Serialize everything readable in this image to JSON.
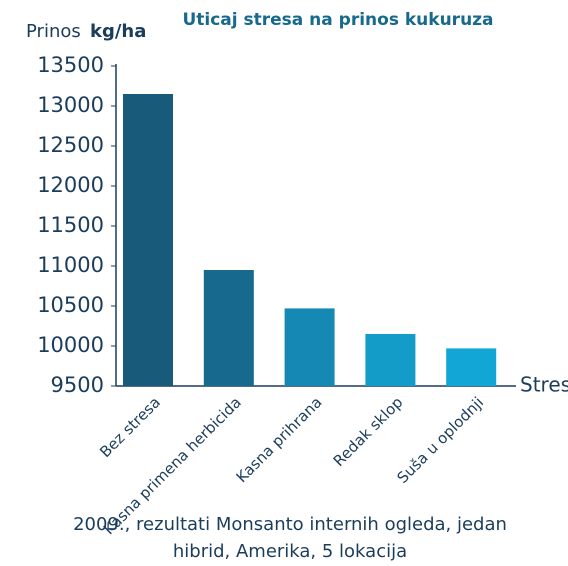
{
  "chart_data": {
    "type": "bar",
    "title": "Uticaj stresa na prinos kukuruza",
    "ylabel": "Prinos",
    "ylabel_unit": "kg/ha",
    "xlabel": "Stres",
    "categories": [
      "Bez stresa",
      "Kasna primena herbicida",
      "Kasna prihrana",
      "Redak sklop",
      "Suša u oplodnji"
    ],
    "values": [
      13150,
      10950,
      10470,
      10150,
      9970
    ],
    "colors": [
      "#175a7a",
      "#17698e",
      "#1588b3",
      "#139cc8",
      "#12a6d6"
    ],
    "ylim": [
      9500,
      13500
    ],
    "yticks": [
      9500,
      10000,
      10500,
      11000,
      11500,
      12000,
      12500,
      13000,
      13500
    ],
    "grid": false,
    "footnote": [
      "2009., rezultati Monsanto internih ogleda, jedan",
      "hibrid, Amerika, 5 lokacija"
    ]
  }
}
